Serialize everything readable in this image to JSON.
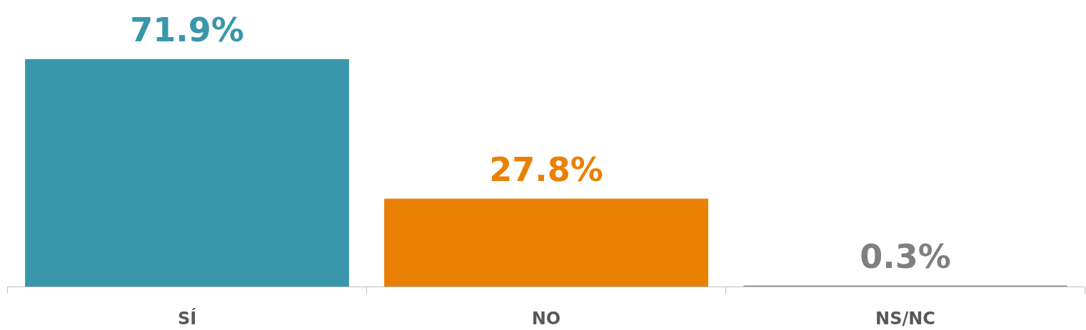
{
  "chart_data": {
    "type": "bar",
    "categories": [
      "SÍ",
      "NO",
      "NS/NC"
    ],
    "values": [
      71.9,
      27.8,
      0.3
    ],
    "colors": [
      "#3a96ab",
      "#e98004",
      "#7f7f7f"
    ],
    "value_labels": [
      "71.9%",
      "27.8%",
      "0.3%"
    ]
  }
}
